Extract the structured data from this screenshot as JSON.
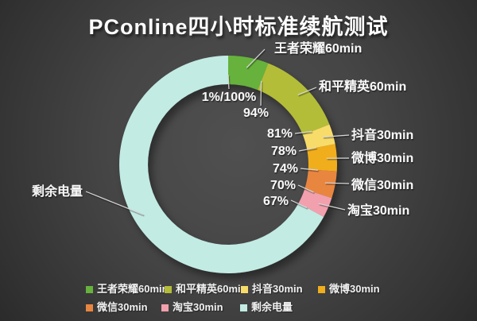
{
  "title": "PConline四小时标准续航测试",
  "chart_data": {
    "type": "pie",
    "subtype": "donut",
    "title": "PConline四小时标准续航测试",
    "unit": "%",
    "direction": "clockwise",
    "start": "top",
    "legend_position": "bottom",
    "segments": [
      {
        "label": "王者荣耀60min",
        "value": 6,
        "color": "#66b23d"
      },
      {
        "label": "和平精英60min",
        "value": 13,
        "color": "#b3bd37"
      },
      {
        "label": "抖音30min",
        "value": 3,
        "color": "#f8dc6b"
      },
      {
        "label": "微博30min",
        "value": 4,
        "color": "#f0ae1d"
      },
      {
        "label": "微信30min",
        "value": 4,
        "color": "#e8863f"
      },
      {
        "label": "淘宝30min",
        "value": 3,
        "color": "#f2a0ad"
      },
      {
        "label": "剩余电量",
        "value": 67,
        "color": "#c2ebe3"
      }
    ],
    "boundary_labels": [
      {
        "label": "1%/100%",
        "pct": 0
      },
      {
        "label": "94%",
        "pct": 6
      },
      {
        "label": "81%",
        "pct": 19
      },
      {
        "label": "78%",
        "pct": 22
      },
      {
        "label": "74%",
        "pct": 26
      },
      {
        "label": "70%",
        "pct": 30
      },
      {
        "label": "67%",
        "pct": 33
      }
    ]
  }
}
